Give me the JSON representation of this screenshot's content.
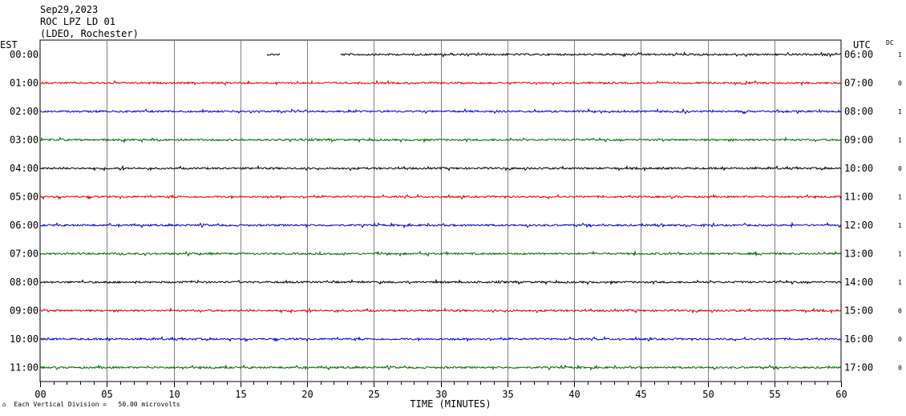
{
  "header": {
    "date": "Sep29,2023",
    "station": "ROC LPZ LD 01",
    "network": "(LDEO, Rochester)"
  },
  "left_zone_label": "EST",
  "right_zone_label": "UTC",
  "dc_label": "DC",
  "footer_note": "Each Vertical Division =   50.00 microvolts",
  "footer_mark": "⌂",
  "colors": {
    "black": "#000000",
    "red": "#dd0000",
    "blue": "#0000cc",
    "green": "#006600",
    "grid": "#808080"
  },
  "chart_data": {
    "type": "line",
    "xlabel": "TIME (MINUTES)",
    "xlim": [
      0,
      60
    ],
    "x_ticks": [
      "00",
      "05",
      "10",
      "15",
      "20",
      "25",
      "30",
      "35",
      "40",
      "45",
      "50",
      "55",
      "60"
    ],
    "rows": [
      {
        "est": "00:00",
        "utc": "06:00",
        "dc": "1",
        "color": "#000000",
        "segments": [
          [
            17,
            18
          ],
          [
            22.5,
            60
          ]
        ]
      },
      {
        "est": "01:00",
        "utc": "07:00",
        "dc": "0",
        "color": "#dd0000",
        "segments": [
          [
            0,
            60
          ]
        ]
      },
      {
        "est": "02:00",
        "utc": "08:00",
        "dc": "1",
        "color": "#0000cc",
        "segments": [
          [
            0,
            60
          ]
        ]
      },
      {
        "est": "03:00",
        "utc": "09:00",
        "dc": "1",
        "color": "#006600",
        "segments": [
          [
            0,
            60
          ]
        ]
      },
      {
        "est": "04:00",
        "utc": "10:00",
        "dc": "0",
        "color": "#000000",
        "segments": [
          [
            0,
            60
          ]
        ]
      },
      {
        "est": "05:00",
        "utc": "11:00",
        "dc": "1",
        "color": "#dd0000",
        "segments": [
          [
            0,
            60
          ]
        ]
      },
      {
        "est": "06:00",
        "utc": "12:00",
        "dc": "1",
        "color": "#0000cc",
        "segments": [
          [
            0,
            60
          ]
        ]
      },
      {
        "est": "07:00",
        "utc": "13:00",
        "dc": "1",
        "color": "#006600",
        "segments": [
          [
            0,
            60
          ]
        ]
      },
      {
        "est": "08:00",
        "utc": "14:00",
        "dc": "1",
        "color": "#000000",
        "segments": [
          [
            0,
            60
          ]
        ]
      },
      {
        "est": "09:00",
        "utc": "15:00",
        "dc": "0",
        "color": "#dd0000",
        "segments": [
          [
            0,
            60
          ]
        ]
      },
      {
        "est": "10:00",
        "utc": "16:00",
        "dc": "0",
        "color": "#0000cc",
        "segments": [
          [
            0,
            60
          ]
        ]
      },
      {
        "est": "11:00",
        "utc": "17:00",
        "dc": "0",
        "color": "#006600",
        "segments": [
          [
            0,
            60
          ]
        ]
      }
    ]
  }
}
